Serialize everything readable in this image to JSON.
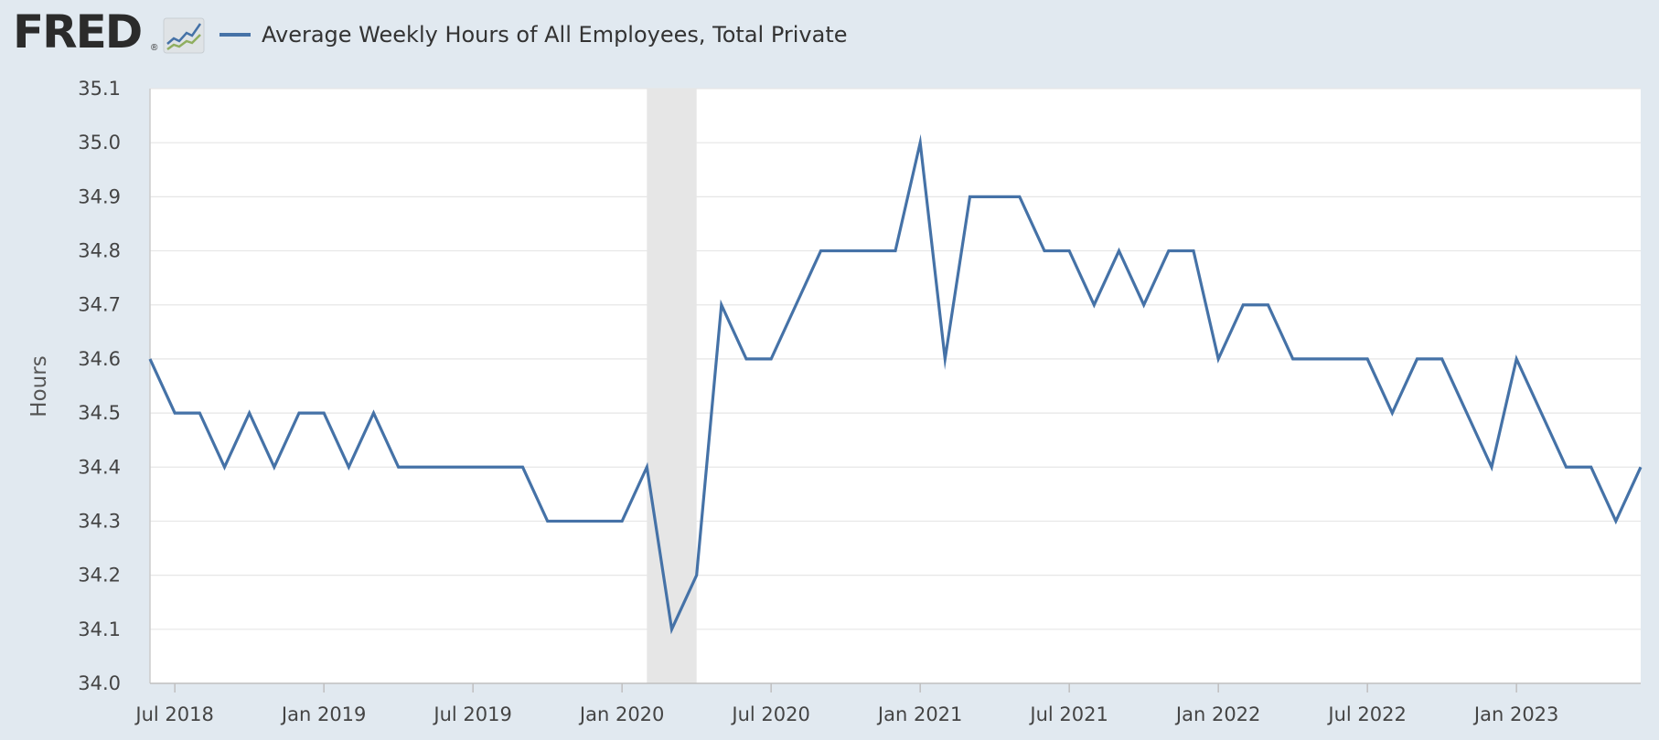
{
  "header": {
    "logo_text": "FRED",
    "logo_reg": "®",
    "logo_icon": "chart-line-icon"
  },
  "chart_data": {
    "type": "line",
    "title": "",
    "legend": {
      "placement": "top-left",
      "entries": [
        "Average Weekly Hours of All Employees, Total Private"
      ]
    },
    "ylabel": "Hours",
    "xlabel": "",
    "ylim": [
      34.0,
      35.1
    ],
    "y_ticks": [
      "34.0",
      "34.1",
      "34.2",
      "34.3",
      "34.4",
      "34.5",
      "34.6",
      "34.7",
      "34.8",
      "34.9",
      "35.0",
      "35.1"
    ],
    "x_ticks": [
      {
        "label": "Jul 2018",
        "date": "2018-07"
      },
      {
        "label": "Jan 2019",
        "date": "2019-01"
      },
      {
        "label": "Jul 2019",
        "date": "2019-07"
      },
      {
        "label": "Jan 2020",
        "date": "2020-01"
      },
      {
        "label": "Jul 2020",
        "date": "2020-07"
      },
      {
        "label": "Jan 2021",
        "date": "2021-01"
      },
      {
        "label": "Jul 2021",
        "date": "2021-07"
      },
      {
        "label": "Jan 2022",
        "date": "2022-01"
      },
      {
        "label": "Jul 2022",
        "date": "2022-07"
      },
      {
        "label": "Jan 2023",
        "date": "2023-01"
      }
    ],
    "grid": true,
    "recession": {
      "start": "2020-02",
      "end": "2020-04"
    },
    "series": [
      {
        "name": "Average Weekly Hours of All Employees, Total Private",
        "color": "#4572a7",
        "x": [
          "2018-06",
          "2018-07",
          "2018-08",
          "2018-09",
          "2018-10",
          "2018-11",
          "2018-12",
          "2019-01",
          "2019-02",
          "2019-03",
          "2019-04",
          "2019-05",
          "2019-06",
          "2019-07",
          "2019-08",
          "2019-09",
          "2019-10",
          "2019-11",
          "2019-12",
          "2020-01",
          "2020-02",
          "2020-03",
          "2020-04",
          "2020-05",
          "2020-06",
          "2020-07",
          "2020-08",
          "2020-09",
          "2020-10",
          "2020-11",
          "2020-12",
          "2021-01",
          "2021-02",
          "2021-03",
          "2021-04",
          "2021-05",
          "2021-06",
          "2021-07",
          "2021-08",
          "2021-09",
          "2021-10",
          "2021-11",
          "2021-12",
          "2022-01",
          "2022-02",
          "2022-03",
          "2022-04",
          "2022-05",
          "2022-06",
          "2022-07",
          "2022-08",
          "2022-09",
          "2022-10",
          "2022-11",
          "2022-12",
          "2023-01",
          "2023-02",
          "2023-03",
          "2023-04",
          "2023-05",
          "2023-06"
        ],
        "values": [
          34.6,
          34.5,
          34.5,
          34.4,
          34.5,
          34.4,
          34.5,
          34.5,
          34.4,
          34.5,
          34.4,
          34.4,
          34.4,
          34.4,
          34.4,
          34.4,
          34.3,
          34.3,
          34.3,
          34.3,
          34.4,
          34.1,
          34.2,
          34.7,
          34.6,
          34.6,
          34.7,
          34.8,
          34.8,
          34.8,
          34.8,
          35.0,
          34.6,
          34.9,
          34.9,
          34.9,
          34.8,
          34.8,
          34.7,
          34.8,
          34.7,
          34.8,
          34.8,
          34.6,
          34.7,
          34.7,
          34.6,
          34.6,
          34.6,
          34.6,
          34.5,
          34.6,
          34.6,
          34.5,
          34.4,
          34.6,
          34.5,
          34.4,
          34.4,
          34.3,
          34.4
        ]
      }
    ]
  }
}
